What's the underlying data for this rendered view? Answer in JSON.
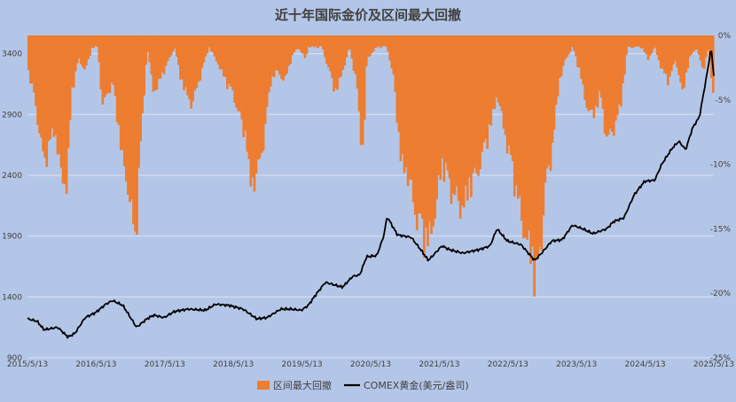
{
  "chart_data": {
    "type": "bar+line",
    "title": "近十年国际金价及区间最大回撤",
    "x_tick_labels": [
      "2015/5/13",
      "2016/5/13",
      "2017/5/13",
      "2018/5/13",
      "2019/5/13",
      "2020/5/13",
      "2021/5/13",
      "2022/5/13",
      "2023/5/13",
      "2024/5/13",
      "2025/5/13"
    ],
    "y_left": {
      "ticks": [
        "900",
        "1400",
        "1900",
        "2400",
        "2900",
        "3400"
      ],
      "min": 900,
      "max": 3550
    },
    "y_right": {
      "ticks": [
        "0%",
        "-5%",
        "-10%",
        "-15%",
        "-20%",
        "-25%"
      ],
      "min": -25,
      "max": 0
    },
    "legend": [
      "区间最大回撤",
      "COMEX黄金(美元/盎司)"
    ],
    "colors": {
      "drawdown": "#ed7d31",
      "price": "#000000",
      "background": "#b4c6e7",
      "grid": "#d9e1f2"
    },
    "gold_price": {
      "t": [
        2015.36,
        2015.5,
        2015.6,
        2015.8,
        2015.95,
        2016.05,
        2016.2,
        2016.35,
        2016.5,
        2016.6,
        2016.75,
        2016.95,
        2017.1,
        2017.2,
        2017.35,
        2017.5,
        2017.7,
        2017.95,
        2018.1,
        2018.3,
        2018.5,
        2018.7,
        2018.85,
        2019.05,
        2019.2,
        2019.35,
        2019.45,
        2019.55,
        2019.7,
        2019.95,
        2020.1,
        2020.2,
        2020.3,
        2020.45,
        2020.55,
        2020.6,
        2020.75,
        2020.95,
        2021.1,
        2021.2,
        2021.4,
        2021.5,
        2021.7,
        2021.95,
        2022.1,
        2022.2,
        2022.35,
        2022.55,
        2022.75,
        2022.85,
        2023.0,
        2023.15,
        2023.3,
        2023.45,
        2023.6,
        2023.8,
        2023.9,
        2024.05,
        2024.2,
        2024.35,
        2024.5,
        2024.6,
        2024.75,
        2024.85,
        2024.95,
        2025.05,
        2025.15,
        2025.25,
        2025.28,
        2025.32,
        2025.36
      ],
      "v": [
        1220,
        1200,
        1130,
        1150,
        1070,
        1100,
        1230,
        1270,
        1340,
        1370,
        1330,
        1150,
        1220,
        1250,
        1230,
        1280,
        1300,
        1290,
        1340,
        1330,
        1300,
        1220,
        1230,
        1300,
        1300,
        1290,
        1330,
        1410,
        1520,
        1480,
        1570,
        1580,
        1730,
        1740,
        1900,
        2060,
        1910,
        1890,
        1780,
        1700,
        1820,
        1790,
        1760,
        1790,
        1820,
        1960,
        1860,
        1830,
        1700,
        1760,
        1860,
        1870,
        1990,
        1960,
        1920,
        1960,
        2020,
        2050,
        2240,
        2350,
        2360,
        2490,
        2620,
        2680,
        2610,
        2790,
        2880,
        3200,
        3300,
        3450,
        3220
      ]
    },
    "drawdown": {
      "t": [
        2015.36,
        2015.45,
        2015.55,
        2015.6,
        2015.75,
        2015.85,
        2015.93,
        2016.0,
        2016.1,
        2016.2,
        2016.3,
        2016.38,
        2016.45,
        2016.6,
        2016.75,
        2016.85,
        2016.93,
        2017.0,
        2017.1,
        2017.2,
        2017.35,
        2017.5,
        2017.6,
        2017.75,
        2017.9,
        2018.0,
        2018.1,
        2018.25,
        2018.35,
        2018.45,
        2018.55,
        2018.6,
        2018.7,
        2018.8,
        2018.9,
        2019.0,
        2019.1,
        2019.2,
        2019.3,
        2019.4,
        2019.45,
        2019.55,
        2019.65,
        2019.75,
        2019.85,
        2019.95,
        2020.05,
        2020.15,
        2020.2,
        2020.25,
        2020.3,
        2020.45,
        2020.55,
        2020.6,
        2020.7,
        2020.8,
        2020.9,
        2021.0,
        2021.1,
        2021.2,
        2021.3,
        2021.4,
        2021.5,
        2021.6,
        2021.7,
        2021.8,
        2021.9,
        2022.0,
        2022.1,
        2022.2,
        2022.3,
        2022.4,
        2022.5,
        2022.6,
        2022.7,
        2022.75,
        2022.8,
        2022.85,
        2022.9,
        2023.0,
        2023.1,
        2023.2,
        2023.3,
        2023.4,
        2023.5,
        2023.6,
        2023.7,
        2023.8,
        2023.9,
        2024.0,
        2024.1,
        2024.2,
        2024.3,
        2024.4,
        2024.5,
        2024.6,
        2024.7,
        2024.8,
        2024.9,
        2025.0,
        2025.1,
        2025.2,
        2025.28,
        2025.33,
        2025.36
      ],
      "v": [
        -3,
        -5,
        -9,
        -11,
        -8,
        -12,
        -13,
        -5,
        -2,
        -3,
        -1,
        -1,
        -6,
        -4,
        -11,
        -14,
        -18,
        -10,
        -1,
        -5,
        -3,
        -1,
        -4,
        -6,
        -3,
        -1,
        -2,
        -4,
        -5,
        -7,
        -9,
        -13,
        -12,
        -9,
        -4,
        -3,
        -4,
        -2,
        -1,
        -2,
        -1,
        -1,
        -1,
        -3,
        -5,
        -3,
        -1,
        -4,
        -8,
        -10,
        -2,
        -1,
        -1,
        -1,
        -4,
        -11,
        -12,
        -15,
        -17,
        -18,
        -15,
        -11,
        -13,
        -14,
        -15,
        -13,
        -12,
        -10,
        -8,
        -5,
        -8,
        -11,
        -14,
        -17,
        -19,
        -21,
        -20,
        -17,
        -13,
        -10,
        -4,
        -2,
        -1,
        -3,
        -6,
        -7,
        -5,
        -9,
        -8,
        -6,
        -1,
        -1,
        -1,
        -2,
        -1,
        -3,
        -4,
        -2,
        -5,
        -2,
        -1,
        -3,
        -1,
        -4,
        -6
      ]
    }
  }
}
